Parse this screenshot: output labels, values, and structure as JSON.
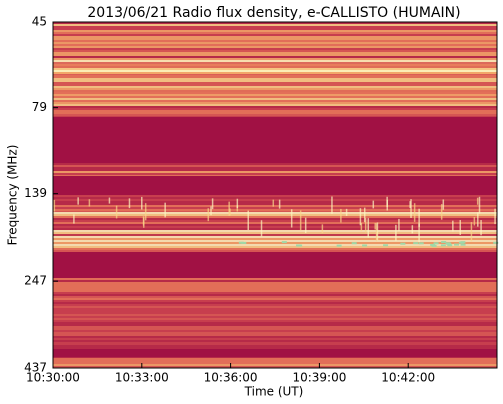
{
  "chart_data": {
    "type": "heatmap",
    "title": "2013/06/21  Radio flux density, e-CALLISTO (HUMAIN)",
    "xlabel": "Time (UT)",
    "ylabel": "Frequency (MHz)",
    "xlim": [
      "10:30:00",
      "10:45:00"
    ],
    "xticks": [
      "10:30:00",
      "10:33:00",
      "10:36:00",
      "10:39:00",
      "10:42:00"
    ],
    "ylim": [
      437,
      45
    ],
    "yticks": [
      45,
      79,
      139,
      247,
      437
    ],
    "yscale": "log"
  }
}
